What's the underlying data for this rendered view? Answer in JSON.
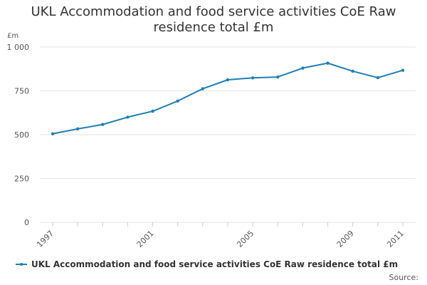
{
  "chart_data": {
    "type": "line",
    "title": "UKL Accommodation and food service activities CoE Raw residence total £m",
    "title_lines": [
      "UKL Accommodation and food service activities CoE Raw",
      "residence total £m"
    ],
    "ylabel": "£m",
    "xlabel": "",
    "ylim": [
      0,
      1000
    ],
    "yticks": [
      0,
      250,
      500,
      750,
      1000
    ],
    "ytick_labels": [
      "0",
      "250",
      "500",
      "750",
      "1 000"
    ],
    "xticks": [
      1997,
      2001,
      2005,
      2009,
      2011
    ],
    "xtick_labels": [
      "1997",
      "2001",
      "2005",
      "2009",
      "2011"
    ],
    "x": [
      1997,
      1998,
      1999,
      2000,
      2001,
      2002,
      2003,
      2004,
      2005,
      2006,
      2007,
      2008,
      2009,
      2010,
      2011
    ],
    "series": [
      {
        "name": "UKL Accommodation and food service activities CoE Raw residence total £m",
        "color": "#1f7fb8",
        "values": [
          505,
          533,
          558,
          600,
          634,
          692,
          762,
          813,
          824,
          829,
          880,
          908,
          862,
          825,
          867
        ]
      }
    ],
    "grid": true,
    "legend_position": "bottom"
  },
  "footer": {
    "source_label": "Source:"
  }
}
